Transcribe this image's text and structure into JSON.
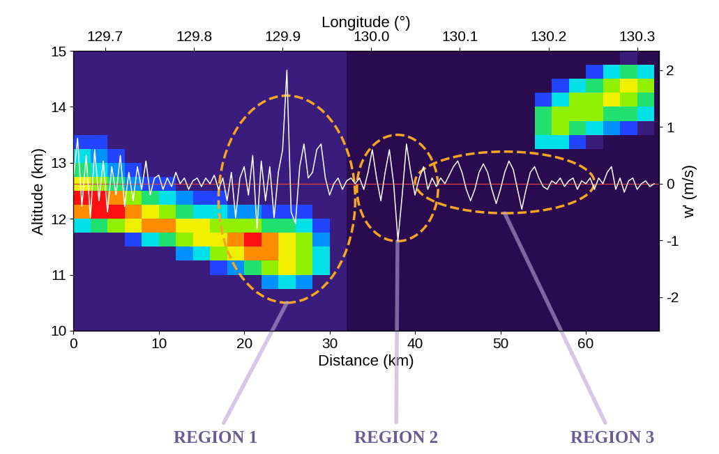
{
  "chart_data": {
    "type": "heatmap",
    "x_label": "Distance (km)",
    "y_label": "Altitude (km)",
    "x2_label": "Longitude (°)",
    "y2_label": "w' (m/s)",
    "xlim": [
      0,
      68.6
    ],
    "xticks": [
      0,
      10,
      20,
      30,
      40,
      50,
      60
    ],
    "ylim": [
      10,
      15
    ],
    "yticks": [
      10,
      11,
      12,
      13,
      14,
      15
    ],
    "x2lim": [
      129.664,
      130.325
    ],
    "x2ticks": [
      129.7,
      129.8,
      129.9,
      {
        "value": 130,
        "label": "130.0"
      },
      130.1,
      130.2,
      130.3
    ],
    "y2lim": [
      -2.59,
      2.34
    ],
    "y2ticks": [
      -2,
      -1,
      0,
      1,
      2
    ],
    "cells": {
      "x_edges": [
        0,
        2,
        4,
        6,
        8,
        10,
        12,
        14,
        16,
        18,
        20,
        22,
        24,
        26,
        28,
        30,
        32,
        34,
        36,
        38,
        40,
        42,
        44,
        46,
        48,
        50,
        52,
        54,
        56,
        58,
        60,
        62,
        64,
        66,
        68
      ],
      "y_edges": [
        10,
        10.25,
        10.5,
        10.75,
        11,
        11.25,
        11.5,
        11.75,
        12,
        12.25,
        12.5,
        12.75,
        13,
        13.25,
        13.5,
        13.75,
        14,
        14.25,
        14.5,
        14.75,
        15
      ],
      "range": [
        0,
        9
      ],
      "values": [
        [
          1,
          1,
          1,
          1,
          1,
          1,
          1,
          1,
          1,
          1,
          1,
          1,
          1,
          1,
          1,
          1,
          0,
          0,
          0,
          0,
          0,
          0,
          0,
          0,
          0,
          0,
          0,
          0,
          0,
          0,
          0,
          0,
          0,
          0
        ],
        [
          1,
          1,
          1,
          1,
          1,
          1,
          1,
          1,
          1,
          1,
          1,
          1,
          1,
          1,
          1,
          1,
          0,
          0,
          0,
          0,
          0,
          0,
          0,
          0,
          0,
          0,
          0,
          0,
          0,
          0,
          0,
          0,
          0,
          0
        ],
        [
          1,
          1,
          1,
          1,
          1,
          1,
          1,
          1,
          1,
          1,
          1,
          1,
          1,
          1,
          1,
          1,
          0,
          0,
          0,
          0,
          0,
          0,
          0,
          0,
          0,
          0,
          0,
          0,
          0,
          0,
          0,
          0,
          0,
          0
        ],
        [
          1,
          1,
          1,
          1,
          1,
          1,
          1,
          1,
          1,
          1,
          1,
          3,
          4,
          3,
          1,
          1,
          0,
          0,
          0,
          0,
          0,
          0,
          0,
          0,
          0,
          0,
          0,
          0,
          0,
          0,
          0,
          0,
          0,
          0
        ],
        [
          1,
          1,
          1,
          1,
          1,
          1,
          1,
          1,
          2,
          3,
          5,
          6,
          7,
          6,
          4,
          1,
          0,
          0,
          0,
          0,
          0,
          0,
          0,
          0,
          0,
          0,
          0,
          0,
          0,
          0,
          0,
          0,
          0,
          0
        ],
        [
          1,
          1,
          1,
          1,
          1,
          1,
          3,
          4,
          6,
          7,
          8,
          8,
          7,
          6,
          4,
          1,
          0,
          0,
          0,
          0,
          0,
          0,
          0,
          0,
          0,
          0,
          0,
          0,
          0,
          0,
          0,
          0,
          0,
          0
        ],
        [
          1,
          1,
          1,
          2,
          4,
          5,
          6,
          7,
          7,
          8,
          9,
          8,
          7,
          6,
          3,
          1,
          0,
          0,
          0,
          0,
          0,
          0,
          0,
          0,
          0,
          0,
          0,
          0,
          0,
          0,
          0,
          0,
          0,
          0
        ],
        [
          4,
          5,
          6,
          7,
          8,
          8,
          7,
          7,
          6,
          6,
          6,
          5,
          5,
          4,
          2,
          1,
          0,
          0,
          0,
          0,
          0,
          0,
          0,
          0,
          0,
          0,
          0,
          0,
          0,
          0,
          0,
          0,
          0,
          0
        ],
        [
          8,
          9,
          9,
          8,
          7,
          6,
          5,
          4,
          4,
          3,
          3,
          2,
          2,
          2,
          1,
          1,
          0,
          0,
          0,
          0,
          0,
          0,
          0,
          0,
          0,
          0,
          0,
          0,
          0,
          0,
          0,
          0,
          0,
          0
        ],
        [
          9,
          9,
          8,
          6,
          5,
          4,
          3,
          2,
          2,
          1,
          1,
          1,
          1,
          1,
          1,
          1,
          0,
          0,
          0,
          0,
          0,
          0,
          0,
          0,
          0,
          0,
          0,
          0,
          0,
          0,
          0,
          0,
          0,
          0
        ],
        [
          7,
          6,
          5,
          3,
          2,
          2,
          1,
          1,
          1,
          1,
          1,
          1,
          1,
          1,
          1,
          1,
          0,
          0,
          0,
          0,
          0,
          0,
          0,
          0,
          0,
          0,
          0,
          0,
          0,
          0,
          0,
          0,
          0,
          0
        ],
        [
          5,
          4,
          3,
          2,
          1,
          1,
          1,
          1,
          1,
          1,
          1,
          1,
          1,
          1,
          1,
          1,
          0,
          0,
          0,
          0,
          0,
          0,
          0,
          0,
          0,
          0,
          0,
          0,
          0,
          0,
          0,
          0,
          0,
          0
        ],
        [
          4,
          3,
          2,
          1,
          1,
          1,
          1,
          1,
          1,
          1,
          1,
          1,
          1,
          1,
          1,
          1,
          0,
          0,
          0,
          0,
          0,
          0,
          0,
          0,
          0,
          0,
          0,
          0,
          0,
          0,
          0,
          0,
          0,
          0
        ],
        [
          2,
          2,
          1,
          1,
          1,
          1,
          1,
          1,
          1,
          1,
          1,
          1,
          1,
          1,
          1,
          1,
          0,
          0,
          0,
          0,
          0,
          0,
          0,
          0,
          0,
          0,
          0,
          4,
          4,
          2,
          1,
          0,
          0,
          0
        ],
        [
          1,
          1,
          1,
          1,
          1,
          1,
          1,
          1,
          1,
          1,
          1,
          1,
          1,
          1,
          1,
          1,
          0,
          0,
          0,
          0,
          0,
          0,
          0,
          0,
          0,
          0,
          0,
          5,
          6,
          5,
          4,
          3,
          2,
          1
        ],
        [
          1,
          1,
          1,
          1,
          1,
          1,
          1,
          1,
          1,
          1,
          1,
          1,
          1,
          1,
          1,
          1,
          0,
          0,
          0,
          0,
          0,
          0,
          0,
          0,
          0,
          0,
          0,
          5,
          6,
          6,
          6,
          5,
          5,
          4
        ],
        [
          1,
          1,
          1,
          1,
          1,
          1,
          1,
          1,
          1,
          1,
          1,
          1,
          1,
          1,
          1,
          1,
          0,
          0,
          0,
          0,
          0,
          0,
          0,
          0,
          0,
          0,
          0,
          2,
          4,
          6,
          6,
          7,
          6,
          5
        ],
        [
          1,
          1,
          1,
          1,
          1,
          1,
          1,
          1,
          1,
          1,
          1,
          1,
          1,
          1,
          1,
          1,
          0,
          0,
          0,
          0,
          0,
          0,
          0,
          0,
          0,
          0,
          0,
          0,
          2,
          4,
          5,
          6,
          7,
          6
        ],
        [
          1,
          1,
          1,
          1,
          1,
          1,
          1,
          1,
          1,
          1,
          1,
          1,
          1,
          1,
          1,
          1,
          0,
          0,
          0,
          0,
          0,
          0,
          0,
          0,
          0,
          0,
          0,
          0,
          0,
          0,
          2,
          4,
          5,
          4
        ],
        [
          1,
          1,
          1,
          1,
          1,
          1,
          1,
          1,
          1,
          1,
          1,
          1,
          1,
          1,
          1,
          1,
          0,
          0,
          0,
          0,
          0,
          0,
          0,
          0,
          0,
          0,
          0,
          0,
          0,
          0,
          0,
          0,
          1,
          0
        ]
      ]
    },
    "series": [
      {
        "type": "line",
        "axis": "y2",
        "color": "#ffffff",
        "x": [
          0,
          0.5,
          1,
          1.5,
          2,
          2.5,
          3,
          3.5,
          4,
          4.5,
          5,
          5.5,
          6,
          6.5,
          7,
          7.5,
          8,
          8.5,
          9,
          9.5,
          10,
          10.5,
          11,
          11.5,
          12,
          12.5,
          13,
          13.5,
          14,
          14.5,
          15,
          15.5,
          16,
          16.5,
          17,
          17.5,
          18,
          18.5,
          19,
          19.5,
          20,
          20.5,
          21,
          21.5,
          22,
          22.5,
          23,
          23.5,
          24,
          24.5,
          25,
          25.5,
          26,
          26.5,
          27,
          27.5,
          28,
          28.5,
          29,
          29.5,
          30,
          30.5,
          31,
          31.5,
          32,
          32.5,
          33,
          33.5,
          34,
          34.5,
          35,
          35.5,
          36,
          36.5,
          37,
          37.5,
          38,
          38.5,
          39,
          39.5,
          40,
          40.5,
          41,
          41.5,
          42,
          42.5,
          43,
          43.5,
          44,
          44.5,
          45,
          45.5,
          46,
          46.5,
          47,
          47.5,
          48,
          48.5,
          49,
          49.5,
          50,
          50.5,
          51,
          51.5,
          52,
          52.5,
          53,
          53.5,
          54,
          54.5,
          55,
          55.5,
          56,
          56.5,
          57,
          57.5,
          58,
          58.5,
          59,
          59.5,
          60,
          60.5,
          61,
          61.5,
          62,
          62.5,
          63,
          63.5,
          64,
          64.5,
          65,
          65.5,
          66,
          66.5,
          67,
          67.5,
          68
        ],
        "values": [
          0.1,
          0.8,
          -0.4,
          0.5,
          -0.6,
          0.6,
          -0.3,
          0.4,
          -0.5,
          0.3,
          -0.2,
          0.5,
          -0.4,
          0.2,
          -0.3,
          0.3,
          -0.1,
          0.4,
          -0.2,
          0.1,
          0.15,
          -0.1,
          0.1,
          -0.05,
          0.2,
          0.0,
          0.1,
          -0.1,
          0.05,
          0.1,
          -0.05,
          0.1,
          0.0,
          0.15,
          -0.1,
          0.1,
          -0.3,
          0.2,
          -0.6,
          0.1,
          0.3,
          -0.2,
          0.5,
          -0.8,
          0.4,
          -0.3,
          0.3,
          -0.6,
          0.2,
          0.6,
          2.0,
          -0.5,
          -0.7,
          0.3,
          0.7,
          0.1,
          0.2,
          0.6,
          0.7,
          0.1,
          -0.2,
          0.0,
          0.1,
          -0.1,
          0.05,
          0.1,
          0.0,
          0.1,
          -0.1,
          0.2,
          0.6,
          0.1,
          -0.3,
          0.2,
          0.6,
          0.0,
          -1.0,
          -0.2,
          0.7,
          0.2,
          -0.2,
          0.1,
          0.3,
          -0.1,
          0.1,
          -0.05,
          0.1,
          0.0,
          0.15,
          0.3,
          0.4,
          0.2,
          -0.1,
          -0.3,
          -0.1,
          0.2,
          0.35,
          0.2,
          -0.1,
          -0.35,
          -0.1,
          0.2,
          0.4,
          0.25,
          -0.1,
          -0.45,
          -0.1,
          0.2,
          0.3,
          0.1,
          -0.05,
          -0.1,
          0.05,
          0.0,
          0.1,
          -0.05,
          0.05,
          0.1,
          -0.1,
          0.05,
          0.0,
          0.1,
          -0.1,
          0.1,
          0.0,
          0.2,
          0.3,
          -0.1,
          0.1,
          -0.15,
          0.05,
          0.1,
          -0.1,
          0.0,
          0.05,
          -0.05,
          0.0
        ]
      }
    ],
    "reference_line": {
      "axis": "y2",
      "value": 0,
      "color": "#e04040"
    },
    "regions": [
      {
        "label": "REGION 1",
        "x_range": [
          17,
          33
        ],
        "y_range": [
          10.5,
          14.2
        ]
      },
      {
        "label": "REGION 2",
        "x_range": [
          33.2,
          42.7
        ],
        "y_range": [
          11.6,
          13.5
        ]
      },
      {
        "label": "REGION 3",
        "x_range": [
          40,
          61
        ],
        "y_range": [
          12.1,
          13.2
        ]
      }
    ]
  }
}
